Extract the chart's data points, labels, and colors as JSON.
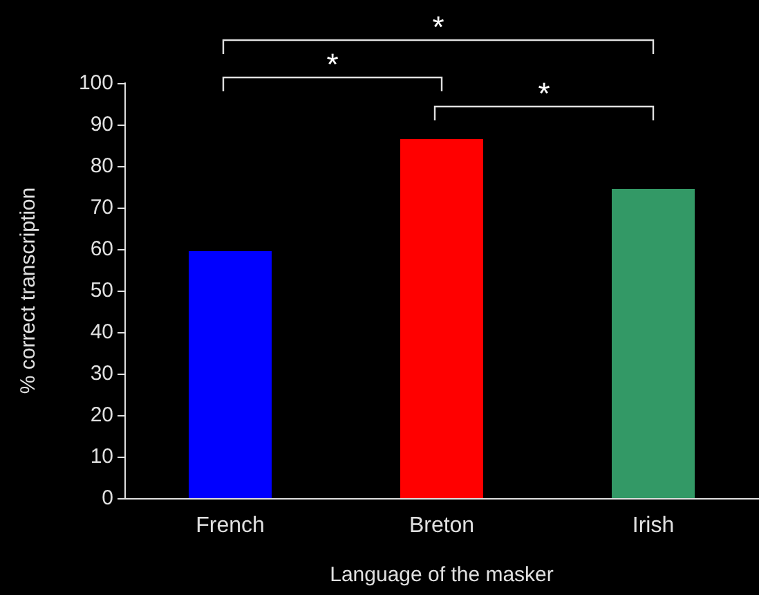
{
  "chart_data": {
    "type": "bar",
    "xlabel": "Language of the masker",
    "ylabel": "% correct transcription",
    "categories": [
      "French",
      "Breton",
      "Irish"
    ],
    "values": [
      59.5,
      86.5,
      74.5
    ],
    "colors": [
      "#0000ff",
      "#ff0000",
      "#339966"
    ],
    "ylim": [
      0,
      100
    ],
    "yticks": [
      0,
      10,
      20,
      30,
      40,
      50,
      60,
      70,
      80,
      90,
      100
    ],
    "annotations": [
      "*",
      "*",
      "*"
    ]
  }
}
